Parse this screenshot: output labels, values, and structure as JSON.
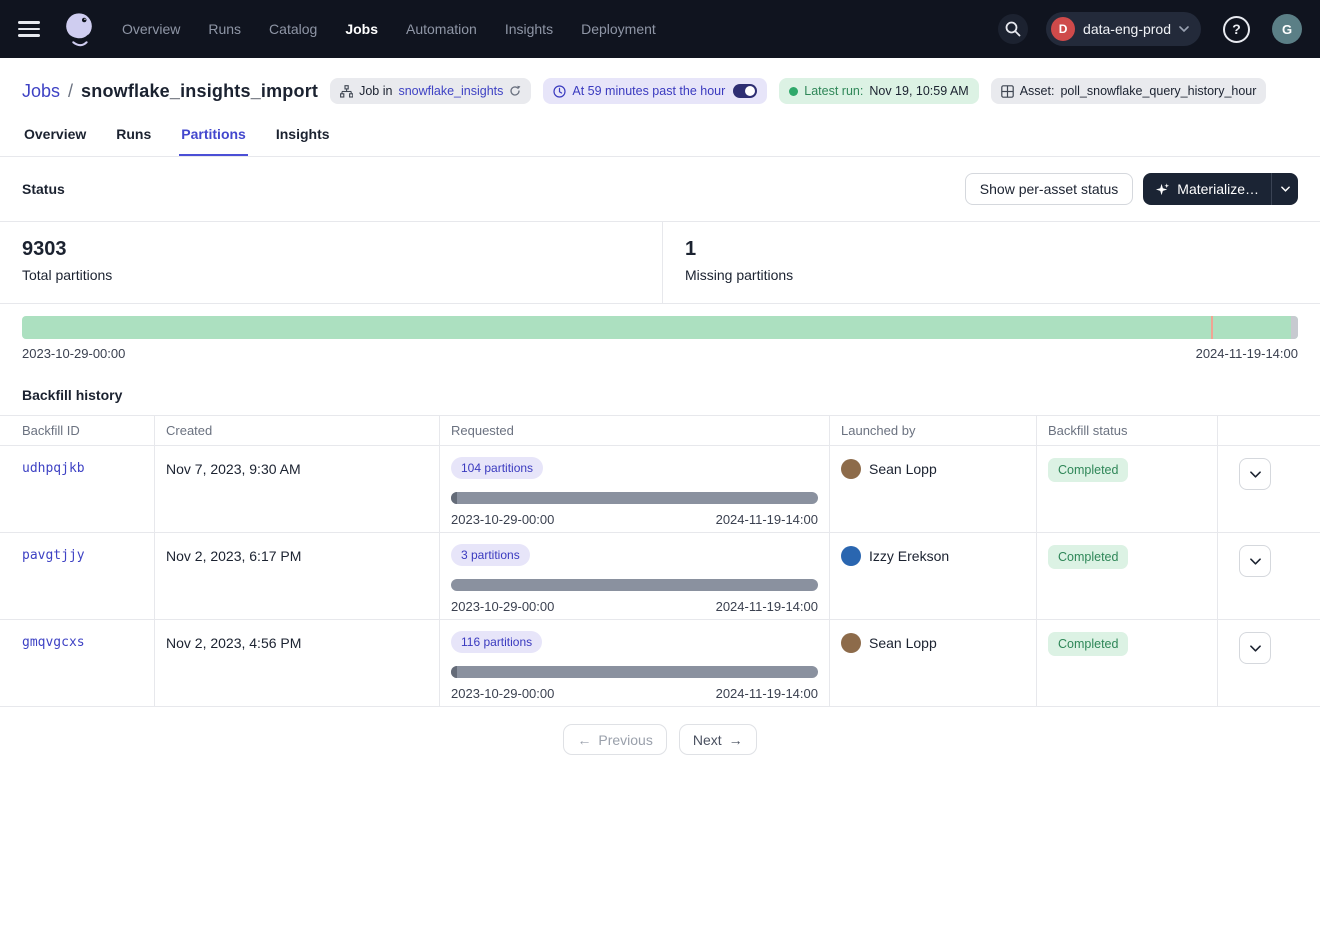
{
  "nav": {
    "items": [
      "Overview",
      "Runs",
      "Catalog",
      "Jobs",
      "Automation",
      "Insights",
      "Deployment"
    ],
    "active_item": "Jobs",
    "deployment_name": "data-eng-prod",
    "deployment_initial": "D",
    "help_glyph": "?",
    "user_initial": "G"
  },
  "breadcrumb": {
    "section": "Jobs",
    "separator": "/",
    "title": "snowflake_insights_import"
  },
  "header_badges": {
    "job_in_prefix": "Job in",
    "job_in_link": "snowflake_insights",
    "schedule_text": "At 59 minutes past the hour",
    "latest_run_label": "Latest run:",
    "latest_run_value": "Nov 19, 10:59 AM",
    "asset_label": "Asset:",
    "asset_value": "poll_snowflake_query_history_hour"
  },
  "tabs": {
    "items": [
      "Overview",
      "Runs",
      "Partitions",
      "Insights"
    ],
    "active": "Partitions"
  },
  "status_section": {
    "heading": "Status",
    "per_asset_button": "Show per-asset status",
    "materialize_button": "Materialize…",
    "stats": [
      {
        "value": "9303",
        "label": "Total partitions"
      },
      {
        "value": "1",
        "label": "Missing partitions"
      }
    ]
  },
  "partition_bar": {
    "start": "2023-10-29-00:00",
    "end": "2024-11-19-14:00",
    "missing_marker_pct": 93.2
  },
  "backfill": {
    "heading": "Backfill history",
    "columns": [
      "Backfill ID",
      "Created",
      "Requested",
      "Launched by",
      "Backfill status",
      ""
    ],
    "rows": [
      {
        "id": "udhpqjkb",
        "created": "Nov 7, 2023, 9:30 AM",
        "requested_label": "104 partitions",
        "range_start": "2023-10-29-00:00",
        "range_end": "2024-11-19-14:00",
        "launched_by": "Sean Lopp",
        "avatar_color": "#8d6b4a",
        "status": "Completed",
        "leading_cap": true
      },
      {
        "id": "pavgtjjy",
        "created": "Nov 2, 2023, 6:17 PM",
        "requested_label": "3 partitions",
        "range_start": "2023-10-29-00:00",
        "range_end": "2024-11-19-14:00",
        "launched_by": "Izzy Erekson",
        "avatar_color": "#2a66b0",
        "status": "Completed",
        "leading_cap": false
      },
      {
        "id": "gmqvgcxs",
        "created": "Nov 2, 2023, 4:56 PM",
        "requested_label": "116 partitions",
        "range_start": "2023-10-29-00:00",
        "range_end": "2024-11-19-14:00",
        "launched_by": "Sean Lopp",
        "avatar_color": "#8d6b4a",
        "status": "Completed",
        "leading_cap": true
      }
    ]
  },
  "pagination": {
    "previous_label": "Previous",
    "next_label": "Next"
  },
  "icons": {
    "arrow_left": "←",
    "arrow_right": "→"
  },
  "colors": {
    "accent": "#4347cd",
    "nav_bg": "#10141f",
    "green_bar": "#ace0c0",
    "missing_marker": "#f0a493",
    "requested_bar": "#8a919f",
    "status_green_bg": "#dcf2e4",
    "status_green_text": "#2f8758",
    "deployment_red": "#cf4a4a",
    "user_teal": "#5b7f86"
  }
}
